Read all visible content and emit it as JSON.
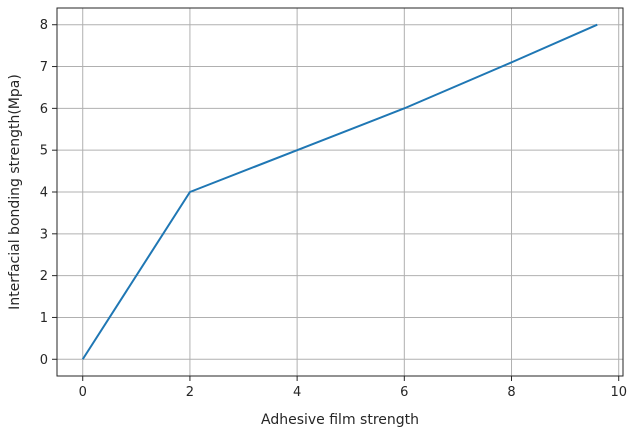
{
  "chart_data": {
    "type": "line",
    "xlabel": "Adhesive film strength",
    "ylabel": "Interfacial bonding strength(Mpa)",
    "xlim": [
      -0.48,
      10.08
    ],
    "ylim": [
      -0.4,
      8.4
    ],
    "xticks": [
      0,
      2,
      4,
      6,
      8,
      10
    ],
    "yticks": [
      0,
      1,
      2,
      3,
      4,
      5,
      6,
      7,
      8
    ],
    "grid": true,
    "series": [
      {
        "color": "#1f77b4",
        "x": [
          0,
          2,
          4,
          6,
          8,
          9.6
        ],
        "y": [
          0,
          4,
          5,
          6,
          7.1,
          8
        ]
      }
    ]
  }
}
